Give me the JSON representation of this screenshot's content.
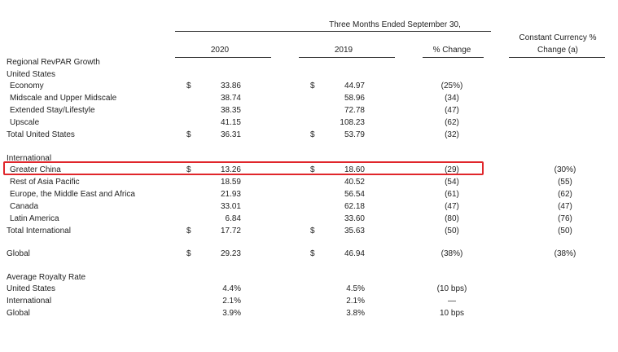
{
  "header": {
    "period": "Three Months Ended September 30,",
    "col_2020": "2020",
    "col_2019": "2019",
    "col_change": "% Change",
    "col_cc_line1": "Constant Currency %",
    "col_cc_line2": "Change (a)"
  },
  "sections": {
    "revpar_title": "Regional RevPAR Growth",
    "us_title": "United States",
    "intl_title": "International",
    "royalty_title": "Average Royalty Rate"
  },
  "rows": [
    {
      "label": "Economy",
      "d1": "$",
      "v2020": "33.86",
      "d2": "$",
      "v2019": "44.97",
      "change": "(25%)",
      "cc": ""
    },
    {
      "label": "Midscale and Upper Midscale",
      "d1": "",
      "v2020": "38.74",
      "d2": "",
      "v2019": "58.96",
      "change": "(34)",
      "cc": ""
    },
    {
      "label": "Extended Stay/Lifestyle",
      "d1": "",
      "v2020": "38.35",
      "d2": "",
      "v2019": "72.78",
      "change": "(47)",
      "cc": ""
    },
    {
      "label": "Upscale",
      "d1": "",
      "v2020": "41.15",
      "d2": "",
      "v2019": "108.23",
      "change": "(62)",
      "cc": ""
    },
    {
      "label": "Total United States",
      "d1": "$",
      "v2020": "36.31",
      "d2": "$",
      "v2019": "53.79",
      "change": "(32)",
      "cc": ""
    },
    {
      "label": "Greater China",
      "d1": "$",
      "v2020": "13.26",
      "d2": "$",
      "v2019": "18.60",
      "change": "(29)",
      "cc": "(30%)"
    },
    {
      "label": "Rest of Asia Pacific",
      "d1": "",
      "v2020": "18.59",
      "d2": "",
      "v2019": "40.52",
      "change": "(54)",
      "cc": "(55)"
    },
    {
      "label": "Europe, the Middle East and Africa",
      "d1": "",
      "v2020": "21.93",
      "d2": "",
      "v2019": "56.54",
      "change": "(61)",
      "cc": "(62)"
    },
    {
      "label": "Canada",
      "d1": "",
      "v2020": "33.01",
      "d2": "",
      "v2019": "62.18",
      "change": "(47)",
      "cc": "(47)"
    },
    {
      "label": "Latin America",
      "d1": "",
      "v2020": "6.84",
      "d2": "",
      "v2019": "33.60",
      "change": "(80)",
      "cc": "(76)"
    },
    {
      "label": "Total International",
      "d1": "$",
      "v2020": "17.72",
      "d2": "$",
      "v2019": "35.63",
      "change": "(50)",
      "cc": "(50)"
    },
    {
      "label": "Global",
      "d1": "$",
      "v2020": "29.23",
      "d2": "$",
      "v2019": "46.94",
      "change": "(38%)",
      "cc": "(38%)"
    },
    {
      "label": "United States",
      "d1": "",
      "v2020": "4.4%",
      "d2": "",
      "v2019": "4.5%",
      "change": "(10 bps)",
      "cc": ""
    },
    {
      "label": "International",
      "d1": "",
      "v2020": "2.1%",
      "d2": "",
      "v2019": "2.1%",
      "change": "—",
      "cc": ""
    },
    {
      "label": "Global",
      "d1": "",
      "v2020": "3.9%",
      "d2": "",
      "v2019": "3.8%",
      "change": "10 bps",
      "cc": ""
    }
  ]
}
